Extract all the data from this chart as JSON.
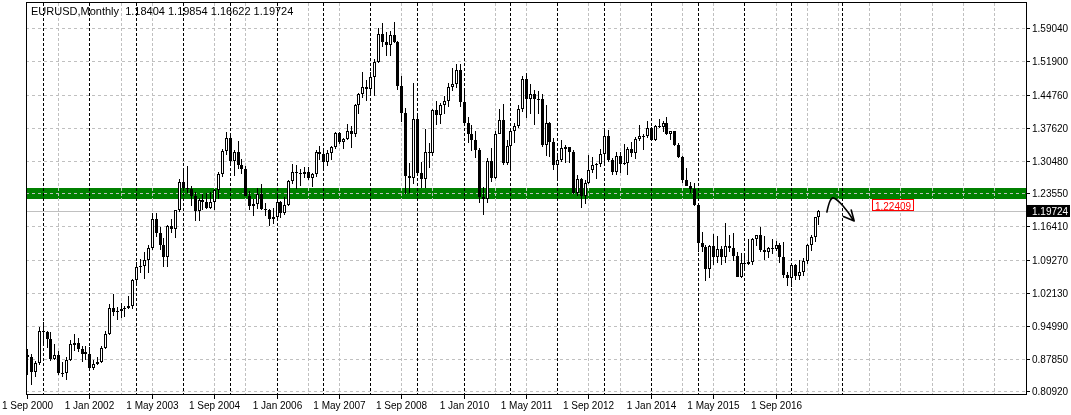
{
  "chart_data": {
    "type": "candlestick",
    "title": "EURUSD,Monthly  1.18404 1.19854 1.16622 1.19724",
    "x": [
      "2000-09",
      "2000-10",
      "2000-11",
      "2000-12",
      "2001-01",
      "2001-02",
      "2001-03",
      "2001-04",
      "2001-05",
      "2001-06",
      "2001-07",
      "2001-08",
      "2001-09",
      "2001-10",
      "2001-11",
      "2001-12",
      "2002-01",
      "2002-02",
      "2002-03",
      "2002-04",
      "2002-05",
      "2002-06",
      "2002-07",
      "2002-08",
      "2002-09",
      "2002-10",
      "2002-11",
      "2002-12",
      "2003-01",
      "2003-02",
      "2003-03",
      "2003-04",
      "2003-05",
      "2003-06",
      "2003-07",
      "2003-08",
      "2003-09",
      "2003-10",
      "2003-11",
      "2003-12",
      "2004-01",
      "2004-02",
      "2004-03",
      "2004-04",
      "2004-05",
      "2004-06",
      "2004-07",
      "2004-08",
      "2004-09",
      "2004-10",
      "2004-11",
      "2004-12",
      "2005-01",
      "2005-02",
      "2005-03",
      "2005-04",
      "2005-05",
      "2005-06",
      "2005-07",
      "2005-08",
      "2005-09",
      "2005-10",
      "2005-11",
      "2005-12",
      "2006-01",
      "2006-02",
      "2006-03",
      "2006-04",
      "2006-05",
      "2006-06",
      "2006-07",
      "2006-08",
      "2006-09",
      "2006-10",
      "2006-11",
      "2006-12",
      "2007-01",
      "2007-02",
      "2007-03",
      "2007-04",
      "2007-05",
      "2007-06",
      "2007-07",
      "2007-08",
      "2007-09",
      "2007-10",
      "2007-11",
      "2007-12",
      "2008-01",
      "2008-02",
      "2008-03",
      "2008-04",
      "2008-05",
      "2008-06",
      "2008-07",
      "2008-08",
      "2008-09",
      "2008-10",
      "2008-11",
      "2008-12",
      "2009-01",
      "2009-02",
      "2009-03",
      "2009-04",
      "2009-05",
      "2009-06",
      "2009-07",
      "2009-08",
      "2009-09",
      "2009-10",
      "2009-11",
      "2009-12",
      "2010-01",
      "2010-02",
      "2010-03",
      "2010-04",
      "2010-05",
      "2010-06",
      "2010-07",
      "2010-08",
      "2010-09",
      "2010-10",
      "2010-11",
      "2010-12",
      "2011-01",
      "2011-02",
      "2011-03",
      "2011-04",
      "2011-05",
      "2011-06",
      "2011-07",
      "2011-08",
      "2011-09",
      "2011-10",
      "2011-11",
      "2011-12",
      "2012-01",
      "2012-02",
      "2012-03",
      "2012-04",
      "2012-05",
      "2012-06",
      "2012-07",
      "2012-08",
      "2012-09",
      "2012-10",
      "2012-11",
      "2012-12",
      "2013-01",
      "2013-02",
      "2013-03",
      "2013-04",
      "2013-05",
      "2013-06",
      "2013-07",
      "2013-08",
      "2013-09",
      "2013-10",
      "2013-11",
      "2013-12",
      "2014-01",
      "2014-02",
      "2014-03",
      "2014-04",
      "2014-05",
      "2014-06",
      "2014-07",
      "2014-08",
      "2014-09",
      "2014-10",
      "2014-11",
      "2014-12",
      "2015-01",
      "2015-02",
      "2015-03",
      "2015-04",
      "2015-05",
      "2015-06",
      "2015-07",
      "2015-08",
      "2015-09",
      "2015-10",
      "2015-11",
      "2015-12",
      "2016-01",
      "2016-02",
      "2016-03",
      "2016-04",
      "2016-05",
      "2016-06",
      "2016-07",
      "2016-08",
      "2016-09",
      "2016-10",
      "2016-11",
      "2016-12",
      "2017-01",
      "2017-02",
      "2017-03",
      "2017-04",
      "2017-05",
      "2017-06",
      "2017-07",
      "2017-08"
    ],
    "ohlc": [
      [
        0.887,
        0.9,
        0.845,
        0.883
      ],
      [
        0.883,
        0.89,
        0.823,
        0.85
      ],
      [
        0.85,
        0.874,
        0.841,
        0.87
      ],
      [
        0.87,
        0.948,
        0.865,
        0.94
      ],
      [
        0.94,
        0.959,
        0.908,
        0.937
      ],
      [
        0.937,
        0.94,
        0.902,
        0.921
      ],
      [
        0.921,
        0.936,
        0.874,
        0.879
      ],
      [
        0.879,
        0.91,
        0.876,
        0.888
      ],
      [
        0.888,
        0.895,
        0.844,
        0.848
      ],
      [
        0.847,
        0.872,
        0.84,
        0.849
      ],
      [
        0.849,
        0.883,
        0.834,
        0.877
      ],
      [
        0.877,
        0.919,
        0.874,
        0.911
      ],
      [
        0.911,
        0.932,
        0.896,
        0.913
      ],
      [
        0.913,
        0.923,
        0.893,
        0.901
      ],
      [
        0.901,
        0.906,
        0.873,
        0.89
      ],
      [
        0.893,
        0.906,
        0.876,
        0.89
      ],
      [
        0.89,
        0.905,
        0.858,
        0.86
      ],
      [
        0.86,
        0.877,
        0.856,
        0.869
      ],
      [
        0.87,
        0.884,
        0.865,
        0.872
      ],
      [
        0.872,
        0.906,
        0.87,
        0.902
      ],
      [
        0.902,
        0.94,
        0.9,
        0.933
      ],
      [
        0.933,
        0.996,
        0.93,
        0.988
      ],
      [
        0.988,
        1.019,
        0.972,
        0.979
      ],
      [
        0.979,
        0.99,
        0.963,
        0.982
      ],
      [
        0.982,
        0.999,
        0.968,
        0.986
      ],
      [
        0.986,
        0.992,
        0.969,
        0.989
      ],
      [
        0.989,
        1.014,
        0.986,
        0.993
      ],
      [
        0.993,
        1.05,
        0.987,
        1.049
      ],
      [
        1.049,
        1.087,
        1.035,
        1.077
      ],
      [
        1.077,
        1.093,
        1.063,
        1.079
      ],
      [
        1.079,
        1.108,
        1.05,
        1.091
      ],
      [
        1.091,
        1.123,
        1.063,
        1.118
      ],
      [
        1.118,
        1.193,
        1.113,
        1.18
      ],
      [
        1.18,
        1.193,
        1.141,
        1.149
      ],
      [
        1.149,
        1.163,
        1.113,
        1.124
      ],
      [
        1.124,
        1.14,
        1.076,
        1.099
      ],
      [
        1.099,
        1.166,
        1.077,
        1.165
      ],
      [
        1.165,
        1.181,
        1.15,
        1.159
      ],
      [
        1.159,
        1.2,
        1.14,
        1.199
      ],
      [
        1.199,
        1.265,
        1.194,
        1.259
      ],
      [
        1.259,
        1.29,
        1.24,
        1.246
      ],
      [
        1.247,
        1.293,
        1.237,
        1.244
      ],
      [
        1.244,
        1.25,
        1.208,
        1.23
      ],
      [
        1.23,
        1.239,
        1.176,
        1.198
      ],
      [
        1.198,
        1.226,
        1.176,
        1.22
      ],
      [
        1.22,
        1.233,
        1.199,
        1.217
      ],
      [
        1.217,
        1.236,
        1.201,
        1.203
      ],
      [
        1.203,
        1.238,
        1.201,
        1.217
      ],
      [
        1.217,
        1.244,
        1.2,
        1.242
      ],
      [
        1.242,
        1.281,
        1.222,
        1.276
      ],
      [
        1.276,
        1.331,
        1.27,
        1.327
      ],
      [
        1.327,
        1.367,
        1.318,
        1.355
      ],
      [
        1.355,
        1.358,
        1.295,
        1.304
      ],
      [
        1.304,
        1.329,
        1.273,
        1.325
      ],
      [
        1.325,
        1.348,
        1.288,
        1.296
      ],
      [
        1.296,
        1.309,
        1.277,
        1.287
      ],
      [
        1.287,
        1.294,
        1.229,
        1.23
      ],
      [
        1.23,
        1.24,
        1.2,
        1.209
      ],
      [
        1.209,
        1.224,
        1.187,
        1.213
      ],
      [
        1.213,
        1.247,
        1.202,
        1.234
      ],
      [
        1.234,
        1.256,
        1.199,
        1.202
      ],
      [
        1.202,
        1.215,
        1.187,
        1.199
      ],
      [
        1.199,
        1.201,
        1.164,
        1.179
      ],
      [
        1.179,
        1.204,
        1.17,
        1.184
      ],
      [
        1.184,
        1.232,
        1.18,
        1.216
      ],
      [
        1.216,
        1.219,
        1.183,
        1.192
      ],
      [
        1.192,
        1.227,
        1.188,
        1.211
      ],
      [
        1.211,
        1.264,
        1.207,
        1.262
      ],
      [
        1.262,
        1.298,
        1.255,
        1.281
      ],
      [
        1.281,
        1.296,
        1.245,
        1.279
      ],
      [
        1.279,
        1.287,
        1.25,
        1.277
      ],
      [
        1.277,
        1.292,
        1.269,
        1.281
      ],
      [
        1.281,
        1.292,
        1.263,
        1.268
      ],
      [
        1.268,
        1.278,
        1.248,
        1.276
      ],
      [
        1.276,
        1.329,
        1.27,
        1.325
      ],
      [
        1.325,
        1.337,
        1.306,
        1.32
      ],
      [
        1.32,
        1.328,
        1.286,
        1.302
      ],
      [
        1.302,
        1.328,
        1.293,
        1.323
      ],
      [
        1.323,
        1.338,
        1.308,
        1.335
      ],
      [
        1.335,
        1.368,
        1.33,
        1.365
      ],
      [
        1.365,
        1.368,
        1.341,
        1.345
      ],
      [
        1.345,
        1.355,
        1.331,
        1.353
      ],
      [
        1.353,
        1.385,
        1.35,
        1.369
      ],
      [
        1.369,
        1.38,
        1.332,
        1.363
      ],
      [
        1.363,
        1.428,
        1.356,
        1.426
      ],
      [
        1.426,
        1.452,
        1.405,
        1.448
      ],
      [
        1.448,
        1.497,
        1.441,
        1.463
      ],
      [
        1.463,
        1.479,
        1.435,
        1.459
      ],
      [
        1.459,
        1.497,
        1.451,
        1.486
      ],
      [
        1.486,
        1.524,
        1.445,
        1.518
      ],
      [
        1.518,
        1.59,
        1.516,
        1.579
      ],
      [
        1.579,
        1.602,
        1.55,
        1.56
      ],
      [
        1.56,
        1.583,
        1.53,
        1.555
      ],
      [
        1.555,
        1.584,
        1.531,
        1.575
      ],
      [
        1.575,
        1.604,
        1.558,
        1.56
      ],
      [
        1.56,
        1.564,
        1.458,
        1.467
      ],
      [
        1.467,
        1.487,
        1.388,
        1.408
      ],
      [
        1.408,
        1.419,
        1.233,
        1.272
      ],
      [
        1.272,
        1.3,
        1.237,
        1.269
      ],
      [
        1.269,
        1.472,
        1.256,
        1.396
      ],
      [
        1.396,
        1.405,
        1.275,
        1.28
      ],
      [
        1.28,
        1.303,
        1.246,
        1.267
      ],
      [
        1.267,
        1.374,
        1.246,
        1.325
      ],
      [
        1.325,
        1.343,
        1.289,
        1.323
      ],
      [
        1.323,
        1.417,
        1.316,
        1.415
      ],
      [
        1.415,
        1.434,
        1.382,
        1.403
      ],
      [
        1.403,
        1.43,
        1.385,
        1.425
      ],
      [
        1.425,
        1.444,
        1.405,
        1.434
      ],
      [
        1.434,
        1.472,
        1.42,
        1.464
      ],
      [
        1.464,
        1.506,
        1.456,
        1.471
      ],
      [
        1.471,
        1.514,
        1.461,
        1.5
      ],
      [
        1.5,
        1.514,
        1.422,
        1.432
      ],
      [
        1.432,
        1.458,
        1.385,
        1.386
      ],
      [
        1.386,
        1.399,
        1.344,
        1.363
      ],
      [
        1.363,
        1.382,
        1.327,
        1.351
      ],
      [
        1.351,
        1.369,
        1.311,
        1.329
      ],
      [
        1.329,
        1.332,
        1.214,
        1.227
      ],
      [
        1.227,
        1.248,
        1.188,
        1.223
      ],
      [
        1.223,
        1.311,
        1.215,
        1.305
      ],
      [
        1.305,
        1.333,
        1.259,
        1.268
      ],
      [
        1.268,
        1.369,
        1.266,
        1.363
      ],
      [
        1.363,
        1.416,
        1.362,
        1.393
      ],
      [
        1.393,
        1.428,
        1.297,
        1.3
      ],
      [
        1.3,
        1.35,
        1.297,
        1.338
      ],
      [
        1.338,
        1.37,
        1.287,
        1.369
      ],
      [
        1.369,
        1.386,
        1.343,
        1.38
      ],
      [
        1.38,
        1.425,
        1.375,
        1.416
      ],
      [
        1.416,
        1.488,
        1.41,
        1.481
      ],
      [
        1.481,
        1.494,
        1.397,
        1.439
      ],
      [
        1.439,
        1.47,
        1.407,
        1.45
      ],
      [
        1.45,
        1.458,
        1.383,
        1.439
      ],
      [
        1.439,
        1.455,
        1.405,
        1.438
      ],
      [
        1.438,
        1.448,
        1.336,
        1.339
      ],
      [
        1.339,
        1.425,
        1.315,
        1.386
      ],
      [
        1.386,
        1.388,
        1.313,
        1.345
      ],
      [
        1.345,
        1.355,
        1.286,
        1.296
      ],
      [
        1.296,
        1.323,
        1.262,
        1.308
      ],
      [
        1.308,
        1.349,
        1.302,
        1.333
      ],
      [
        1.333,
        1.339,
        1.3,
        1.334
      ],
      [
        1.334,
        1.336,
        1.3,
        1.324
      ],
      [
        1.324,
        1.328,
        1.234,
        1.237
      ],
      [
        1.237,
        1.274,
        1.229,
        1.266
      ],
      [
        1.266,
        1.269,
        1.204,
        1.23
      ],
      [
        1.23,
        1.264,
        1.213,
        1.257
      ],
      [
        1.257,
        1.317,
        1.256,
        1.286
      ],
      [
        1.286,
        1.314,
        1.28,
        1.296
      ],
      [
        1.296,
        1.301,
        1.266,
        1.299
      ],
      [
        1.299,
        1.331,
        1.292,
        1.319
      ],
      [
        1.319,
        1.371,
        1.301,
        1.358
      ],
      [
        1.358,
        1.371,
        1.303,
        1.306
      ],
      [
        1.306,
        1.311,
        1.274,
        1.282
      ],
      [
        1.282,
        1.324,
        1.274,
        1.316
      ],
      [
        1.316,
        1.324,
        1.279,
        1.299
      ],
      [
        1.299,
        1.342,
        1.296,
        1.301
      ],
      [
        1.301,
        1.335,
        1.275,
        1.33
      ],
      [
        1.33,
        1.345,
        1.313,
        1.322
      ],
      [
        1.322,
        1.357,
        1.31,
        1.352
      ],
      [
        1.352,
        1.383,
        1.347,
        1.358
      ],
      [
        1.358,
        1.362,
        1.329,
        1.359
      ],
      [
        1.359,
        1.39,
        1.354,
        1.375
      ],
      [
        1.375,
        1.378,
        1.348,
        1.349
      ],
      [
        1.349,
        1.383,
        1.348,
        1.38
      ],
      [
        1.38,
        1.396,
        1.375,
        1.377
      ],
      [
        1.377,
        1.39,
        1.367,
        1.387
      ],
      [
        1.387,
        1.399,
        1.36,
        1.363
      ],
      [
        1.363,
        1.37,
        1.35,
        1.369
      ],
      [
        1.369,
        1.37,
        1.337,
        1.339
      ],
      [
        1.339,
        1.344,
        1.312,
        1.313
      ],
      [
        1.313,
        1.315,
        1.257,
        1.263
      ],
      [
        1.263,
        1.289,
        1.25,
        1.252
      ],
      [
        1.252,
        1.26,
        1.236,
        1.245
      ],
      [
        1.245,
        1.257,
        1.209,
        1.21
      ],
      [
        1.21,
        1.211,
        1.11,
        1.129
      ],
      [
        1.129,
        1.153,
        1.11,
        1.119
      ],
      [
        1.119,
        1.124,
        1.046,
        1.073
      ],
      [
        1.073,
        1.124,
        1.052,
        1.122
      ],
      [
        1.122,
        1.147,
        1.082,
        1.099
      ],
      [
        1.099,
        1.144,
        1.085,
        1.115
      ],
      [
        1.115,
        1.122,
        1.081,
        1.098
      ],
      [
        1.098,
        1.171,
        1.086,
        1.121
      ],
      [
        1.121,
        1.145,
        1.109,
        1.118
      ],
      [
        1.118,
        1.15,
        1.09,
        1.1
      ],
      [
        1.1,
        1.108,
        1.055,
        1.056
      ],
      [
        1.056,
        1.106,
        1.052,
        1.086
      ],
      [
        1.086,
        1.1,
        1.071,
        1.083
      ],
      [
        1.083,
        1.137,
        1.081,
        1.087
      ],
      [
        1.087,
        1.139,
        1.082,
        1.138
      ],
      [
        1.138,
        1.146,
        1.121,
        1.145
      ],
      [
        1.145,
        1.162,
        1.11,
        1.113
      ],
      [
        1.113,
        1.143,
        1.091,
        1.11
      ],
      [
        1.11,
        1.119,
        1.095,
        1.117
      ],
      [
        1.117,
        1.136,
        1.105,
        1.116
      ],
      [
        1.116,
        1.133,
        1.112,
        1.124
      ],
      [
        1.124,
        1.128,
        1.085,
        1.098
      ],
      [
        1.098,
        1.13,
        1.052,
        1.059
      ],
      [
        1.059,
        1.067,
        1.035,
        1.052
      ],
      [
        1.052,
        1.082,
        1.034,
        1.08
      ],
      [
        1.08,
        1.083,
        1.049,
        1.058
      ],
      [
        1.058,
        1.091,
        1.049,
        1.065
      ],
      [
        1.065,
        1.095,
        1.057,
        1.09
      ],
      [
        1.09,
        1.127,
        1.084,
        1.124
      ],
      [
        1.124,
        1.145,
        1.112,
        1.142
      ],
      [
        1.142,
        1.185,
        1.131,
        1.184
      ],
      [
        1.18404,
        1.19854,
        1.16622,
        1.19724
      ]
    ],
    "xlim": [
      "2000-08-24",
      "2022-01-08"
    ],
    "xticks": [
      {
        "value": "2000-09",
        "label": "1 Sep 2000"
      },
      {
        "value": "2002-01",
        "label": "1 Jan 2002"
      },
      {
        "value": "2003-05",
        "label": "1 May 2003"
      },
      {
        "value": "2004-09",
        "label": "1 Sep 2004"
      },
      {
        "value": "2006-01",
        "label": "1 Jan 2006"
      },
      {
        "value": "2007-05",
        "label": "1 May 2007"
      },
      {
        "value": "2008-09",
        "label": "1 Sep 2008"
      },
      {
        "value": "2010-01",
        "label": "1 Jan 2010"
      },
      {
        "value": "2011-05",
        "label": "1 May 2011"
      },
      {
        "value": "2012-09",
        "label": "1 Sep 2012"
      },
      {
        "value": "2014-01",
        "label": "1 Jan 2014"
      },
      {
        "value": "2015-05",
        "label": "1 May 2015"
      },
      {
        "value": "2016-09",
        "label": "1 Sep 2016"
      }
    ],
    "ylim": [
      0.8023,
      1.6459
    ],
    "yticks": [
      {
        "value": 0.8092,
        "label": "0.80920"
      },
      {
        "value": 0.8785,
        "label": "0.87850"
      },
      {
        "value": 0.9499,
        "label": "0.94990"
      },
      {
        "value": 1.0213,
        "label": "1.02130"
      },
      {
        "value": 1.0927,
        "label": "1.09270"
      },
      {
        "value": 1.1641,
        "label": "1.16410"
      },
      {
        "value": 1.2355,
        "label": "1.23550"
      },
      {
        "value": 1.3048,
        "label": "1.30480"
      },
      {
        "value": 1.3762,
        "label": "1.37620"
      },
      {
        "value": 1.4476,
        "label": "1.44760"
      },
      {
        "value": 1.519,
        "label": "1.51900"
      },
      {
        "value": 1.5904,
        "label": "1.59040"
      }
    ],
    "grid": "y",
    "ref_lines": [
      {
        "axis": "y",
        "value": 1.19724,
        "label": "1.19724",
        "color": "#c0c0c0"
      },
      {
        "axis": "x",
        "value": "2001-01",
        "color": "#000000",
        "line_style": "dashed"
      },
      {
        "axis": "x",
        "value": "2002-01",
        "color": "#000000",
        "line_style": "dashed"
      },
      {
        "axis": "x",
        "value": "2003-01",
        "color": "#000000",
        "line_style": "dashed"
      },
      {
        "axis": "x",
        "value": "2004-01",
        "color": "#000000",
        "line_style": "dashed"
      },
      {
        "axis": "x",
        "value": "2005-01",
        "color": "#000000",
        "line_style": "dashed"
      },
      {
        "axis": "x",
        "value": "2006-01",
        "color": "#000000",
        "line_style": "dashed"
      },
      {
        "axis": "x",
        "value": "2007-01",
        "color": "#000000",
        "line_style": "dashed"
      },
      {
        "axis": "x",
        "value": "2008-01",
        "color": "#000000",
        "line_style": "dashed"
      },
      {
        "axis": "x",
        "value": "2009-01",
        "color": "#000000",
        "line_style": "dashed"
      },
      {
        "axis": "x",
        "value": "2010-01",
        "color": "#000000",
        "line_style": "dashed"
      },
      {
        "axis": "x",
        "value": "2011-01",
        "color": "#000000",
        "line_style": "dashed"
      },
      {
        "axis": "x",
        "value": "2012-01",
        "color": "#000000",
        "line_style": "dashed"
      },
      {
        "axis": "x",
        "value": "2013-01",
        "color": "#000000",
        "line_style": "dashed"
      },
      {
        "axis": "x",
        "value": "2014-01",
        "color": "#000000",
        "line_style": "dashed"
      },
      {
        "axis": "x",
        "value": "2015-01",
        "color": "#000000",
        "line_style": "dashed"
      },
      {
        "axis": "x",
        "value": "2016-01",
        "color": "#000000",
        "line_style": "dashed"
      },
      {
        "axis": "x",
        "value": "2017-01",
        "color": "#000000",
        "line_style": "dashed"
      },
      {
        "axis": "x",
        "value": "2018-02",
        "color": "#000000",
        "line_style": "dashed"
      },
      {
        "axis": "x",
        "value": "2001-05",
        "color": "#c0c0c0",
        "line_style": "dashed"
      },
      {
        "axis": "x",
        "value": "2002-09",
        "color": "#c0c0c0",
        "line_style": "dashed"
      },
      {
        "axis": "x",
        "value": "2003-05",
        "color": "#c0c0c0",
        "line_style": "dashed"
      },
      {
        "axis": "x",
        "value": "2004-09",
        "color": "#c0c0c0",
        "line_style": "dashed"
      },
      {
        "axis": "x",
        "value": "2005-05",
        "color": "#c0c0c0",
        "line_style": "dashed"
      },
      {
        "axis": "x",
        "value": "2006-09",
        "color": "#c0c0c0",
        "line_style": "dashed"
      },
      {
        "axis": "x",
        "value": "2007-05",
        "color": "#c0c0c0",
        "line_style": "dashed"
      },
      {
        "axis": "x",
        "value": "2008-09",
        "color": "#c0c0c0",
        "line_style": "dashed"
      },
      {
        "axis": "x",
        "value": "2009-05",
        "color": "#c0c0c0",
        "line_style": "dashed"
      },
      {
        "axis": "x",
        "value": "2010-09",
        "color": "#c0c0c0",
        "line_style": "dashed"
      },
      {
        "axis": "x",
        "value": "2011-05",
        "color": "#c0c0c0",
        "line_style": "dashed"
      },
      {
        "axis": "x",
        "value": "2012-09",
        "color": "#c0c0c0",
        "line_style": "dashed"
      },
      {
        "axis": "x",
        "value": "2013-05",
        "color": "#c0c0c0",
        "line_style": "dashed"
      },
      {
        "axis": "x",
        "value": "2014-09",
        "color": "#c0c0c0",
        "line_style": "dashed"
      },
      {
        "axis": "x",
        "value": "2015-05",
        "color": "#c0c0c0",
        "line_style": "dashed"
      },
      {
        "axis": "x",
        "value": "2016-09",
        "color": "#c0c0c0",
        "line_style": "dashed"
      },
      {
        "axis": "x",
        "value": "2017-05",
        "color": "#c0c0c0",
        "line_style": "dashed"
      },
      {
        "axis": "x",
        "value": "2018-01",
        "color": "#c0c0c0",
        "line_style": "dashed"
      },
      {
        "axis": "x",
        "value": "2018-09",
        "color": "#c0c0c0",
        "line_style": "dashed"
      },
      {
        "axis": "x",
        "value": "2019-05",
        "color": "#c0c0c0",
        "line_style": "dashed"
      },
      {
        "axis": "x",
        "value": "2020-01",
        "color": "#c0c0c0",
        "line_style": "dashed"
      },
      {
        "axis": "x",
        "value": "2020-09",
        "color": "#c0c0c0",
        "line_style": "dashed"
      },
      {
        "axis": "x",
        "value": "2021-05",
        "color": "#c0c0c0",
        "line_style": "dashed"
      }
    ],
    "bands": [
      {
        "axis": "y",
        "from": 1.22409,
        "to": 1.246,
        "label": "1.22409",
        "color": "#008000"
      }
    ]
  }
}
